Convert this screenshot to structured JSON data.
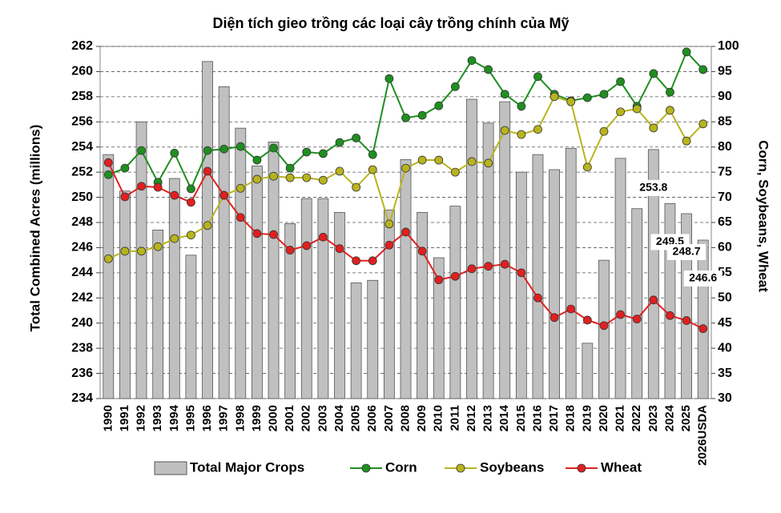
{
  "chart_data": {
    "type": "bar-line",
    "title": "Diện tích gieo trồng các loại cây trồng chính của Mỹ",
    "y_label": "Total Combined Acres (millions)",
    "y2_label": "Corn, Soybeans, Wheat",
    "categories": [
      "1990",
      "1991",
      "1992",
      "1993",
      "1994",
      "1995",
      "1996",
      "1997",
      "1998",
      "1999",
      "2000",
      "2001",
      "2002",
      "2003",
      "2004",
      "2005",
      "2006",
      "2007",
      "2008",
      "2009",
      "2010",
      "2011",
      "2012",
      "2013",
      "2014",
      "2015",
      "2016",
      "2017",
      "2018",
      "2019",
      "2020",
      "2021",
      "2022",
      "2023",
      "2024",
      "2025",
      "2026USDA"
    ],
    "ylim": [
      234,
      262
    ],
    "yticks": [
      234,
      236,
      238,
      240,
      242,
      244,
      246,
      248,
      250,
      252,
      254,
      256,
      258,
      260,
      262
    ],
    "y2lim": [
      30,
      100
    ],
    "y2ticks": [
      30,
      35,
      40,
      45,
      50,
      55,
      60,
      65,
      70,
      75,
      80,
      85,
      90,
      95,
      100
    ],
    "grid": true,
    "legend": "bottom",
    "series": [
      {
        "name": "Total Major Crops",
        "type": "bar",
        "color": "#c0c0c0",
        "values": [
          253.4,
          250.5,
          256.0,
          247.4,
          251.5,
          245.4,
          260.8,
          258.8,
          255.5,
          252.5,
          254.4,
          247.9,
          249.9,
          249.9,
          248.8,
          243.2,
          243.4,
          249.0,
          253.0,
          248.8,
          245.2,
          249.3,
          257.8,
          255.9,
          257.6,
          252.0,
          253.4,
          252.2,
          253.9,
          238.4,
          245.0,
          253.1,
          249.1,
          253.8,
          249.5,
          248.7,
          246.6
        ],
        "value_labels": [
          null,
          null,
          null,
          null,
          null,
          null,
          null,
          null,
          null,
          null,
          null,
          null,
          null,
          null,
          null,
          null,
          null,
          null,
          null,
          null,
          null,
          null,
          null,
          null,
          null,
          null,
          null,
          null,
          null,
          null,
          null,
          null,
          null,
          "253.8",
          "249.5",
          "248.7",
          "246.6"
        ]
      },
      {
        "name": "Corn",
        "type": "line",
        "axis": "y2",
        "color": "#1f8f1f",
        "values": [
          74.5,
          75.8,
          79.3,
          73.0,
          78.8,
          71.7,
          79.3,
          79.6,
          80.1,
          77.4,
          79.8,
          75.8,
          79.0,
          78.7,
          80.9,
          81.8,
          78.5,
          93.6,
          85.8,
          86.3,
          88.2,
          92.0,
          97.2,
          95.4,
          90.5,
          88.1,
          94.0,
          90.5,
          89.2,
          89.8,
          90.5,
          93.0,
          88.1,
          94.6,
          90.9,
          98.9,
          95.4
        ]
      },
      {
        "name": "Soybeans",
        "type": "line",
        "axis": "y2",
        "color": "#b8b41e",
        "values": [
          57.8,
          59.3,
          59.3,
          60.2,
          61.8,
          62.5,
          64.4,
          70.4,
          71.8,
          73.6,
          74.2,
          73.9,
          73.9,
          73.4,
          75.2,
          72.0,
          75.5,
          64.7,
          75.8,
          77.4,
          77.4,
          75.0,
          77.1,
          76.8,
          83.3,
          82.5,
          83.5,
          90.0,
          89.0,
          76.0,
          83.1,
          87.0,
          87.6,
          83.8,
          87.3,
          81.2,
          84.6
        ]
      },
      {
        "name": "Wheat",
        "type": "line",
        "axis": "y2",
        "color": "#e02020",
        "values": [
          76.9,
          70.1,
          72.2,
          72.0,
          70.4,
          69.0,
          75.2,
          70.4,
          66.0,
          62.8,
          62.6,
          59.5,
          60.4,
          62.1,
          59.8,
          57.4,
          57.4,
          60.5,
          63.1,
          59.3,
          53.6,
          54.3,
          55.8,
          56.3,
          56.7,
          55.0,
          50.0,
          46.1,
          47.8,
          45.6,
          44.5,
          46.7,
          45.8,
          49.6,
          46.5,
          45.5,
          43.9
        ]
      }
    ]
  }
}
